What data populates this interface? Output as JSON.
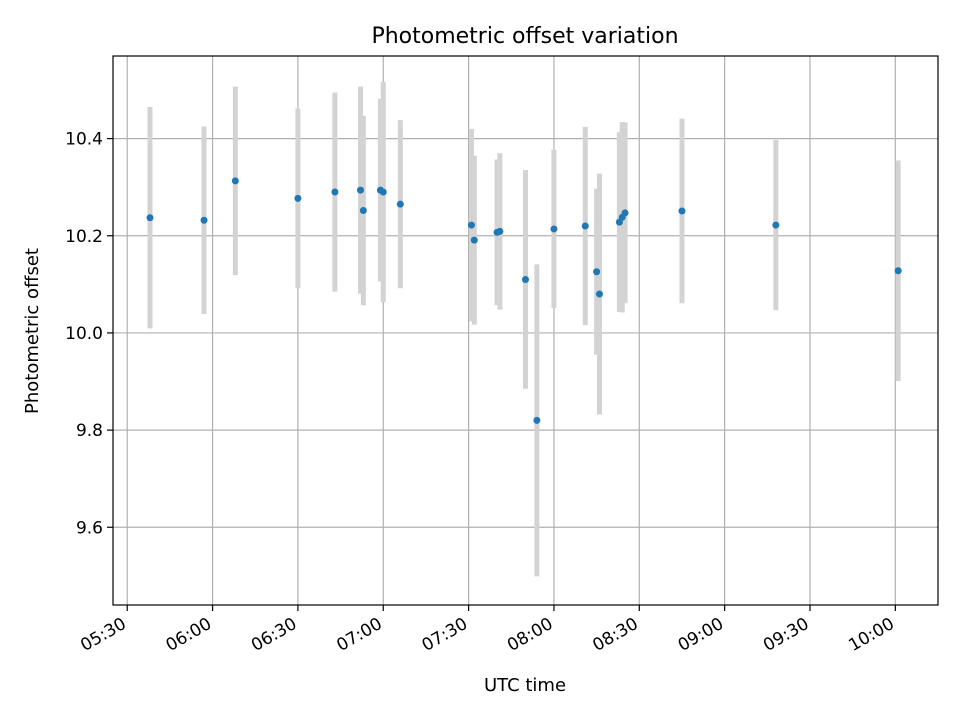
{
  "chart_data": {
    "type": "scatter",
    "title": "Photometric offset variation",
    "xlabel": "UTC time",
    "ylabel": "Photometric offset",
    "x_ticks": [
      "05:30",
      "06:00",
      "06:30",
      "07:00",
      "07:30",
      "08:00",
      "08:30",
      "09:00",
      "09:30",
      "10:00"
    ],
    "y_ticks": [
      "9.6",
      "9.8",
      "10.0",
      "10.2",
      "10.4"
    ],
    "xlim": [
      "05:25",
      "10:15"
    ],
    "ylim": [
      9.44,
      10.57
    ],
    "grid": true,
    "marker_color": "#1f77b4",
    "errorbar_color": "#d3d3d3",
    "points": [
      {
        "t": "05:38",
        "y": 10.237,
        "err": 0.228
      },
      {
        "t": "05:57",
        "y": 10.232,
        "err": 0.193
      },
      {
        "t": "06:08",
        "y": 10.313,
        "err": 0.194
      },
      {
        "t": "06:30",
        "y": 10.277,
        "err": 0.185
      },
      {
        "t": "06:43",
        "y": 10.29,
        "err": 0.205
      },
      {
        "t": "06:52",
        "y": 10.294,
        "err": 0.213
      },
      {
        "t": "06:53",
        "y": 10.252,
        "err": 0.195
      },
      {
        "t": "06:59",
        "y": 10.294,
        "err": 0.188
      },
      {
        "t": "07:00",
        "y": 10.29,
        "err": 0.227
      },
      {
        "t": "07:06",
        "y": 10.265,
        "err": 0.173
      },
      {
        "t": "07:31",
        "y": 10.222,
        "err": 0.198
      },
      {
        "t": "07:32",
        "y": 10.191,
        "err": 0.174
      },
      {
        "t": "07:40",
        "y": 10.207,
        "err": 0.15
      },
      {
        "t": "07:41",
        "y": 10.209,
        "err": 0.161
      },
      {
        "t": "07:50",
        "y": 10.11,
        "err": 0.225
      },
      {
        "t": "07:54",
        "y": 9.82,
        "err": 0.321
      },
      {
        "t": "08:00",
        "y": 10.214,
        "err": 0.163
      },
      {
        "t": "08:11",
        "y": 10.22,
        "err": 0.204
      },
      {
        "t": "08:15",
        "y": 10.126,
        "err": 0.171
      },
      {
        "t": "08:16",
        "y": 10.08,
        "err": 0.248
      },
      {
        "t": "08:23",
        "y": 10.228,
        "err": 0.185
      },
      {
        "t": "08:24",
        "y": 10.238,
        "err": 0.196
      },
      {
        "t": "08:25",
        "y": 10.247,
        "err": 0.186
      },
      {
        "t": "08:45",
        "y": 10.251,
        "err": 0.19
      },
      {
        "t": "09:18",
        "y": 10.222,
        "err": 0.175
      },
      {
        "t": "10:01",
        "y": 10.128,
        "err": 0.227
      }
    ]
  }
}
